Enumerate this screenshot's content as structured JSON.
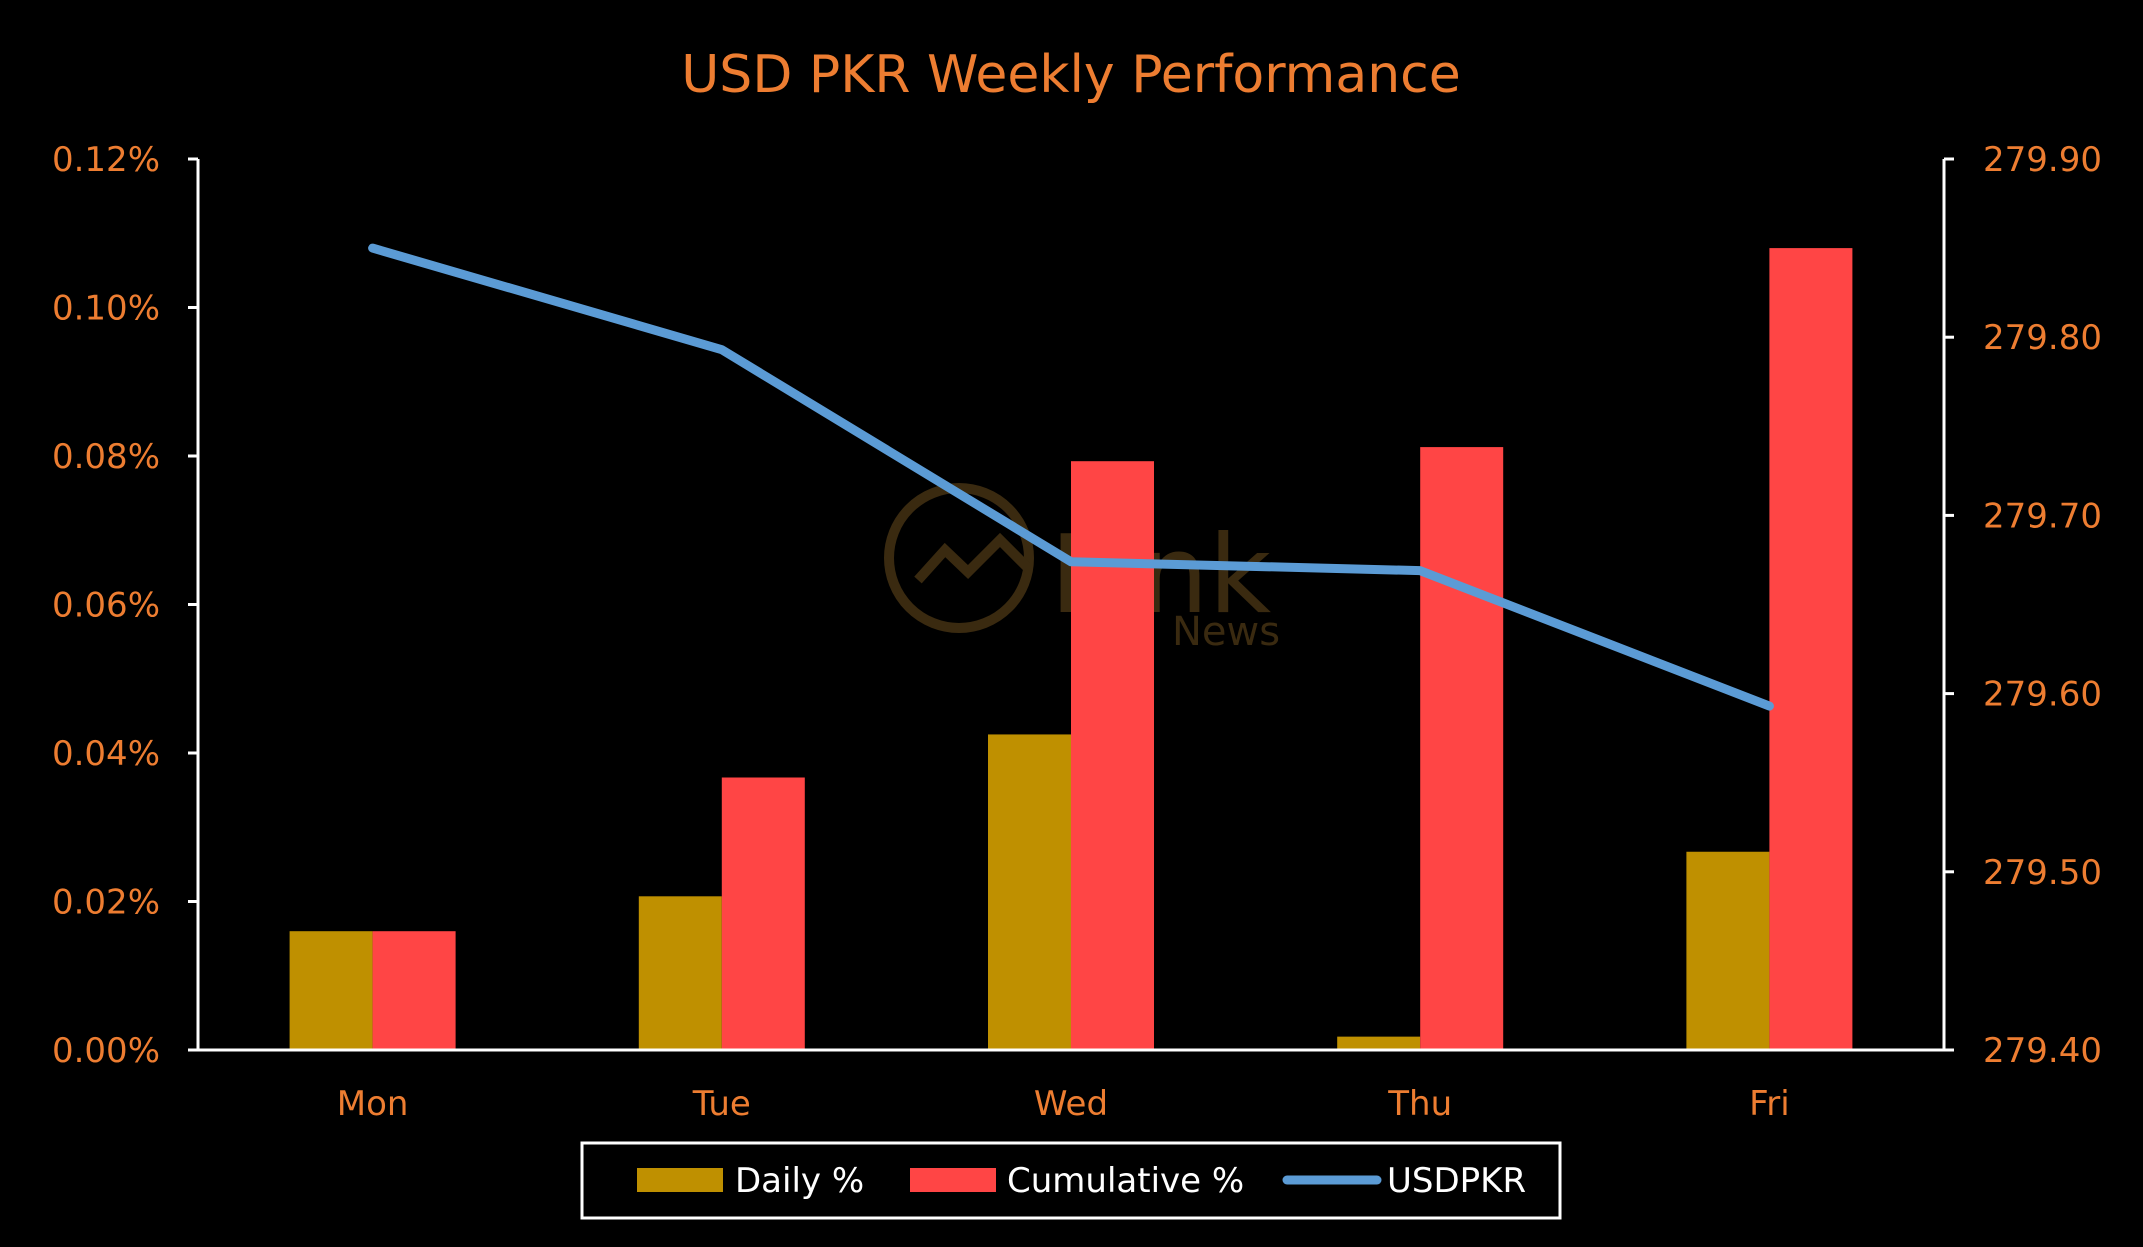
{
  "chart_data": {
    "type": "bar",
    "title": "USD PKR Weekly Performance",
    "categories": [
      "Mon",
      "Tue",
      "Wed",
      "Thu",
      "Fri"
    ],
    "series": [
      {
        "name": "Daily %",
        "type": "bar",
        "axis": "left",
        "color": "#BF9000",
        "values": [
          0.016,
          0.0207,
          0.0425,
          0.0018,
          0.0267
        ]
      },
      {
        "name": "Cumulative %",
        "type": "bar",
        "axis": "left",
        "color": "#FF4545",
        "values": [
          0.016,
          0.0367,
          0.0793,
          0.0812,
          0.108
        ]
      },
      {
        "name": "USDPKR",
        "type": "line",
        "axis": "right",
        "color": "#5B9BD5",
        "values": [
          279.85,
          279.793,
          279.674,
          279.669,
          279.593
        ]
      }
    ],
    "y_left": {
      "ylim": [
        0,
        0.12
      ],
      "ticks": [
        "0.00%",
        "0.02%",
        "0.04%",
        "0.06%",
        "0.08%",
        "0.10%",
        "0.12%"
      ]
    },
    "y_right": {
      "ylim": [
        279.4,
        279.9
      ],
      "ticks": [
        "279.40",
        "279.50",
        "279.60",
        "279.70",
        "279.80",
        "279.90"
      ]
    },
    "xlabel": "",
    "ylabel": "",
    "grid": false,
    "legend_position": "bottom",
    "background": "#000000",
    "text_color": "#ED7D31",
    "watermark": {
      "word": "Link",
      "subword": "News"
    }
  }
}
